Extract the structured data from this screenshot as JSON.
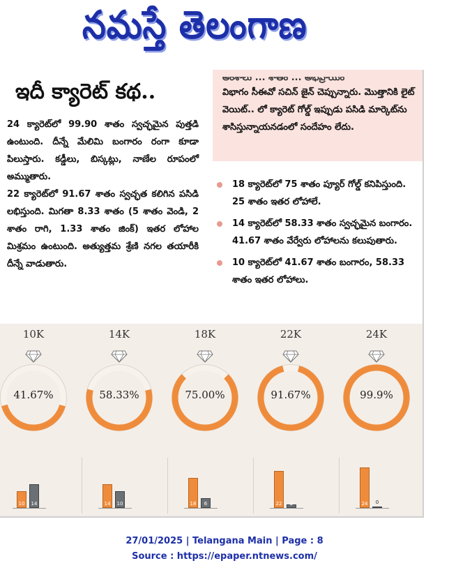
{
  "masthead": {
    "title": "నమస్తే తెలంగాణ"
  },
  "article": {
    "headline": "ఇదీ క్యారెట్ కథ..",
    "left_paragraphs": [
      "24 క్యారెట్‌లో 99.90 శాతం స్వచ్ఛమైన పుత్తడి ఉంటుంది. దీన్నే మేలిమి బంగారం రంగా కూడా పిలుస్తారు. కడ్డీలు, బిస్కట్లు, నాణేల రూపంలో అమ్ముతారు.",
      "22 క్యారెట్‌లో 91.67 శాతం స్వచ్ఛత కలిగిన పసిడి లభిస్తుంది. మిగతా 8.33 శాతం (5 శాతం వెండి, 2 శాతం రాగి, 1.33 శాతం జింక్) ఇతర లోహాల మిశ్రమం ఉంటుంది. అత్యుత్తమ శ్రేణి నగల తయారీకి దీన్నే వాడుతారు."
    ],
    "pink_box": {
      "cut_line": "అంశాలు ... శాతం ... అభిప్రాయం",
      "text": "విభాగం సీఈవో సచిన్ జైన్ చెప్పున్నారు. మొత్తానికి లైట్ వెయిట్.. లో క్యారెట్ గోల్డ్ ఇప్పుడు పసిడి మార్కెట్‌ను శాసిస్తున్నాయనడంలో సందేహం లేదు."
    },
    "bullets": [
      "18 క్యారెట్‌లో 75 శాతం ప్యూర్ గోల్డ్ కనిపిస్తుంది. 25 శాతం ఇతర లోహాలే.",
      "14 క్యారెట్‌లో 58.33 శాతం స్వచ్ఛమైన బంగారం. 41.67 శాతం వేర్వేరు లోహాలను కలుపుతారు.",
      "10 క్యారెట్‌లో 41.67 శాతం బంగారం, 58.33 శాతం ఇతర లోహాలు."
    ]
  },
  "infographic": {
    "karats": [
      {
        "label": "10K",
        "percent_text": "41.67%",
        "gold_fraction": 0.4167,
        "gold_bar": 10,
        "other_bar": 14
      },
      {
        "label": "14K",
        "percent_text": "58.33%",
        "gold_fraction": 0.5833,
        "gold_bar": 14,
        "other_bar": 10
      },
      {
        "label": "18K",
        "percent_text": "75.00%",
        "gold_fraction": 0.75,
        "gold_bar": 18,
        "other_bar": 6
      },
      {
        "label": "22K",
        "percent_text": "91.67%",
        "gold_fraction": 0.9167,
        "gold_bar": 22,
        "other_bar": 2
      },
      {
        "label": "24K",
        "percent_text": "99.9%",
        "gold_fraction": 0.999,
        "gold_bar": 24,
        "other_bar": 0
      }
    ],
    "colors": {
      "gold": "#ef8c3c",
      "other": "#6a7074",
      "ring_empty": "#f7f2ec"
    }
  },
  "footer": {
    "line1": "27/01/2025 | Telangana Main | Page : 8",
    "line2": "Source : https://epaper.ntnews.com/"
  }
}
